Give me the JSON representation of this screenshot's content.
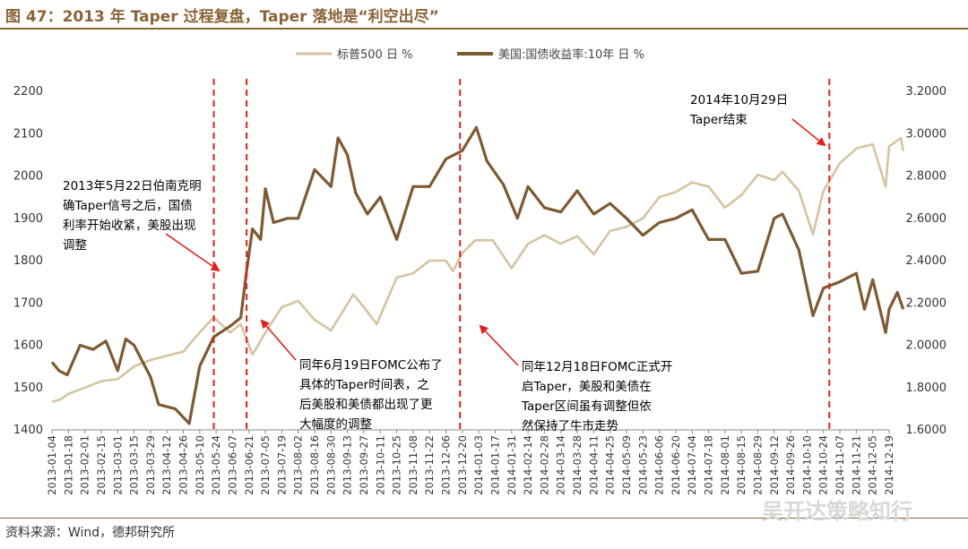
{
  "title": "图 47：2013 年 Taper 过程复盘，Taper 落地是“利空出尽”",
  "source": "资料来源：Wind，德邦研究所",
  "watermark": "吴开达策略知行",
  "colors": {
    "brand": "#8B6438",
    "spx": "#D6C3A0",
    "bond": "#7E5A33",
    "marker": "#E0201A"
  },
  "chart_data": {
    "type": "line",
    "legend_position": "top-center",
    "grid": false,
    "y_left": {
      "min": 1400,
      "max": 2200,
      "ticks": [
        "1400",
        "1500",
        "1600",
        "1700",
        "1800",
        "1900",
        "2000",
        "2100",
        "2200"
      ]
    },
    "y_right": {
      "min": 1.6,
      "max": 3.2,
      "ticks": [
        "1.6000",
        "1.8000",
        "2.0000",
        "2.2000",
        "2.4000",
        "2.6000",
        "2.8000",
        "3.0000",
        "3.2000"
      ]
    },
    "x_range": [
      "2013-01-04",
      "2014-12-19"
    ],
    "x_ticks": [
      "2013-01-04",
      "2013-01-18",
      "2013-02-01",
      "2013-02-15",
      "2013-03-01",
      "2013-03-15",
      "2013-03-29",
      "2013-04-12",
      "2013-04-26",
      "2013-05-10",
      "2013-05-24",
      "2013-06-07",
      "2013-06-21",
      "2013-07-05",
      "2013-07-19",
      "2013-08-02",
      "2013-08-16",
      "2013-08-30",
      "2013-09-13",
      "2013-09-27",
      "2013-10-11",
      "2013-10-25",
      "2013-11-08",
      "2013-11-22",
      "2013-12-06",
      "2013-12-20",
      "2014-01-03",
      "2014-01-17",
      "2014-01-31",
      "2014-02-14",
      "2014-02-28",
      "2014-03-14",
      "2014-03-28",
      "2014-04-11",
      "2014-04-25",
      "2014-05-09",
      "2014-05-23",
      "2014-06-06",
      "2014-06-20",
      "2014-07-04",
      "2014-07-18",
      "2014-08-01",
      "2014-08-15",
      "2014-08-29",
      "2014-09-12",
      "2014-09-26",
      "2014-10-10",
      "2014-10-24",
      "2014-11-07",
      "2014-11-21",
      "2014-12-05",
      "2014-12-19"
    ],
    "series": [
      {
        "name": "标普500 日 %",
        "axis": "left",
        "color": "#D6C3A0",
        "points": [
          [
            "2013-01-04",
            1466
          ],
          [
            "2013-01-11",
            1472
          ],
          [
            "2013-01-18",
            1485
          ],
          [
            "2013-02-01",
            1500
          ],
          [
            "2013-02-15",
            1515
          ],
          [
            "2013-03-01",
            1520
          ],
          [
            "2013-03-15",
            1550
          ],
          [
            "2013-03-29",
            1565
          ],
          [
            "2013-04-12",
            1575
          ],
          [
            "2013-04-26",
            1585
          ],
          [
            "2013-05-10",
            1630
          ],
          [
            "2013-05-22",
            1666
          ],
          [
            "2013-06-05",
            1630
          ],
          [
            "2013-06-14",
            1650
          ],
          [
            "2013-06-24",
            1578
          ],
          [
            "2013-07-05",
            1630
          ],
          [
            "2013-07-19",
            1690
          ],
          [
            "2013-08-02",
            1705
          ],
          [
            "2013-08-16",
            1660
          ],
          [
            "2013-08-30",
            1635
          ],
          [
            "2013-09-18",
            1720
          ],
          [
            "2013-09-27",
            1690
          ],
          [
            "2013-10-08",
            1650
          ],
          [
            "2013-10-25",
            1760
          ],
          [
            "2013-11-08",
            1770
          ],
          [
            "2013-11-22",
            1800
          ],
          [
            "2013-12-06",
            1800
          ],
          [
            "2013-12-12",
            1775
          ],
          [
            "2013-12-20",
            1818
          ],
          [
            "2013-12-31",
            1848
          ],
          [
            "2014-01-15",
            1848
          ],
          [
            "2014-01-31",
            1782
          ],
          [
            "2014-02-14",
            1840
          ],
          [
            "2014-02-28",
            1860
          ],
          [
            "2014-03-14",
            1840
          ],
          [
            "2014-03-28",
            1858
          ],
          [
            "2014-04-11",
            1815
          ],
          [
            "2014-04-25",
            1870
          ],
          [
            "2014-05-09",
            1880
          ],
          [
            "2014-05-23",
            1900
          ],
          [
            "2014-06-06",
            1950
          ],
          [
            "2014-06-20",
            1962
          ],
          [
            "2014-07-04",
            1985
          ],
          [
            "2014-07-18",
            1975
          ],
          [
            "2014-08-01",
            1925
          ],
          [
            "2014-08-15",
            1955
          ],
          [
            "2014-08-29",
            2003
          ],
          [
            "2014-09-12",
            1990
          ],
          [
            "2014-09-19",
            2010
          ],
          [
            "2014-10-03",
            1965
          ],
          [
            "2014-10-15",
            1862
          ],
          [
            "2014-10-24",
            1965
          ],
          [
            "2014-11-07",
            2030
          ],
          [
            "2014-11-21",
            2065
          ],
          [
            "2014-11-28",
            2070
          ],
          [
            "2014-12-05",
            2075
          ],
          [
            "2014-12-16",
            1975
          ],
          [
            "2014-12-19",
            2070
          ],
          [
            "2014-12-29",
            2090
          ],
          [
            "2014-12-31",
            2059
          ]
        ]
      },
      {
        "name": "美国:国债收益率:10年 日 %",
        "axis": "right",
        "color": "#7E5A33",
        "points": [
          [
            "2013-01-04",
            1.92
          ],
          [
            "2013-01-10",
            1.88
          ],
          [
            "2013-01-17",
            1.86
          ],
          [
            "2013-01-28",
            2.0
          ],
          [
            "2013-02-08",
            1.98
          ],
          [
            "2013-02-19",
            2.02
          ],
          [
            "2013-03-01",
            1.88
          ],
          [
            "2013-03-08",
            2.03
          ],
          [
            "2013-03-15",
            2.0
          ],
          [
            "2013-03-29",
            1.85
          ],
          [
            "2013-04-05",
            1.72
          ],
          [
            "2013-04-19",
            1.7
          ],
          [
            "2013-05-01",
            1.63
          ],
          [
            "2013-05-10",
            1.9
          ],
          [
            "2013-05-22",
            2.04
          ],
          [
            "2013-06-05",
            2.09
          ],
          [
            "2013-06-14",
            2.13
          ],
          [
            "2013-06-19",
            2.35
          ],
          [
            "2013-06-24",
            2.55
          ],
          [
            "2013-07-01",
            2.5
          ],
          [
            "2013-07-05",
            2.74
          ],
          [
            "2013-07-12",
            2.58
          ],
          [
            "2013-07-24",
            2.6
          ],
          [
            "2013-08-02",
            2.6
          ],
          [
            "2013-08-16",
            2.83
          ],
          [
            "2013-08-30",
            2.75
          ],
          [
            "2013-09-05",
            2.98
          ],
          [
            "2013-09-13",
            2.9
          ],
          [
            "2013-09-20",
            2.72
          ],
          [
            "2013-09-30",
            2.62
          ],
          [
            "2013-10-11",
            2.7
          ],
          [
            "2013-10-25",
            2.5
          ],
          [
            "2013-11-08",
            2.75
          ],
          [
            "2013-11-22",
            2.75
          ],
          [
            "2013-12-06",
            2.88
          ],
          [
            "2013-12-20",
            2.92
          ],
          [
            "2014-01-01",
            3.03
          ],
          [
            "2014-01-10",
            2.87
          ],
          [
            "2014-01-24",
            2.76
          ],
          [
            "2014-02-05",
            2.6
          ],
          [
            "2014-02-14",
            2.75
          ],
          [
            "2014-02-28",
            2.65
          ],
          [
            "2014-03-14",
            2.63
          ],
          [
            "2014-03-28",
            2.73
          ],
          [
            "2014-04-11",
            2.62
          ],
          [
            "2014-04-25",
            2.67
          ],
          [
            "2014-05-09",
            2.6
          ],
          [
            "2014-05-23",
            2.52
          ],
          [
            "2014-06-06",
            2.58
          ],
          [
            "2014-06-20",
            2.6
          ],
          [
            "2014-07-04",
            2.64
          ],
          [
            "2014-07-18",
            2.5
          ],
          [
            "2014-08-01",
            2.5
          ],
          [
            "2014-08-15",
            2.34
          ],
          [
            "2014-08-29",
            2.35
          ],
          [
            "2014-09-12",
            2.6
          ],
          [
            "2014-09-19",
            2.62
          ],
          [
            "2014-10-03",
            2.45
          ],
          [
            "2014-10-15",
            2.14
          ],
          [
            "2014-10-24",
            2.27
          ],
          [
            "2014-11-07",
            2.3
          ],
          [
            "2014-11-21",
            2.34
          ],
          [
            "2014-11-28",
            2.17
          ],
          [
            "2014-12-05",
            2.31
          ],
          [
            "2014-12-16",
            2.06
          ],
          [
            "2014-12-19",
            2.17
          ],
          [
            "2014-12-26",
            2.25
          ],
          [
            "2014-12-31",
            2.17
          ]
        ]
      }
    ],
    "event_lines": [
      "2013-05-22",
      "2013-06-19",
      "2013-12-18",
      "2014-10-29"
    ],
    "annotations": [
      {
        "name": "anno-may22",
        "lines": [
          "2013年5月22日伯南克明",
          "确Taper信号之后，国债",
          "利率开始收紧，美股出现",
          "调整"
        ]
      },
      {
        "name": "anno-jun19",
        "lines": [
          "同年6月19日FOMC公布了",
          "具体的Taper时间表，之",
          "后美股和美债都出现了更",
          "大幅度的调整"
        ]
      },
      {
        "name": "anno-dec18",
        "lines": [
          "同年12月18日FOMC正式开",
          "启Taper，美股和美债在",
          "Taper区间虽有调整但依",
          "然保持了牛市走势"
        ]
      },
      {
        "name": "anno-oct29",
        "lines": [
          "2014年10月29日",
          "Taper结束"
        ]
      }
    ]
  }
}
